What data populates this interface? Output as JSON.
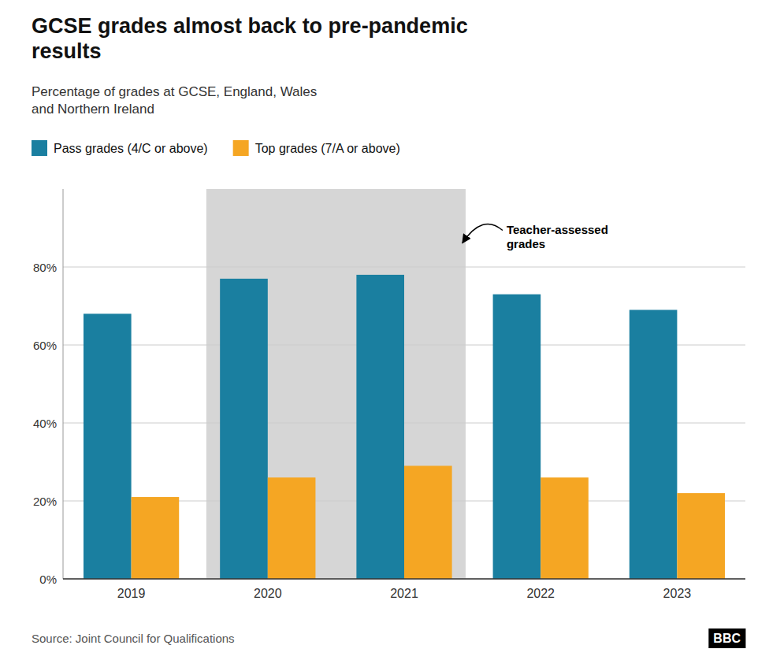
{
  "chart_data": {
    "type": "bar",
    "title": "GCSE grades almost back to pre-pandemic\nresults",
    "subtitle": "Percentage of grades at GCSE, England, Wales\nand Northern Ireland",
    "source": "Source: Joint Council for Qualifications",
    "credit": "BBC",
    "categories": [
      "2019",
      "2020",
      "2021",
      "2022",
      "2023"
    ],
    "series": [
      {
        "name": "Pass grades (4/C or above)",
        "color": "#1a7fa0",
        "values": [
          68,
          77,
          78,
          73,
          69
        ]
      },
      {
        "name": "Top grades (7/A or above)",
        "color": "#f5a623",
        "values": [
          21,
          26,
          29,
          26,
          22
        ]
      }
    ],
    "annotations": [
      {
        "text": "Teacher-assessed\ngrades",
        "categories": [
          "2020",
          "2021"
        ],
        "color": "#d6d6d6"
      }
    ],
    "ylim": [
      0,
      100
    ],
    "yticks": [
      {
        "value": 0,
        "label": "0%"
      },
      {
        "value": 20,
        "label": "20%"
      },
      {
        "value": 40,
        "label": "40%"
      },
      {
        "value": 60,
        "label": "60%"
      },
      {
        "value": 80,
        "label": "80%"
      }
    ],
    "grid": true,
    "legend": "top-left"
  }
}
